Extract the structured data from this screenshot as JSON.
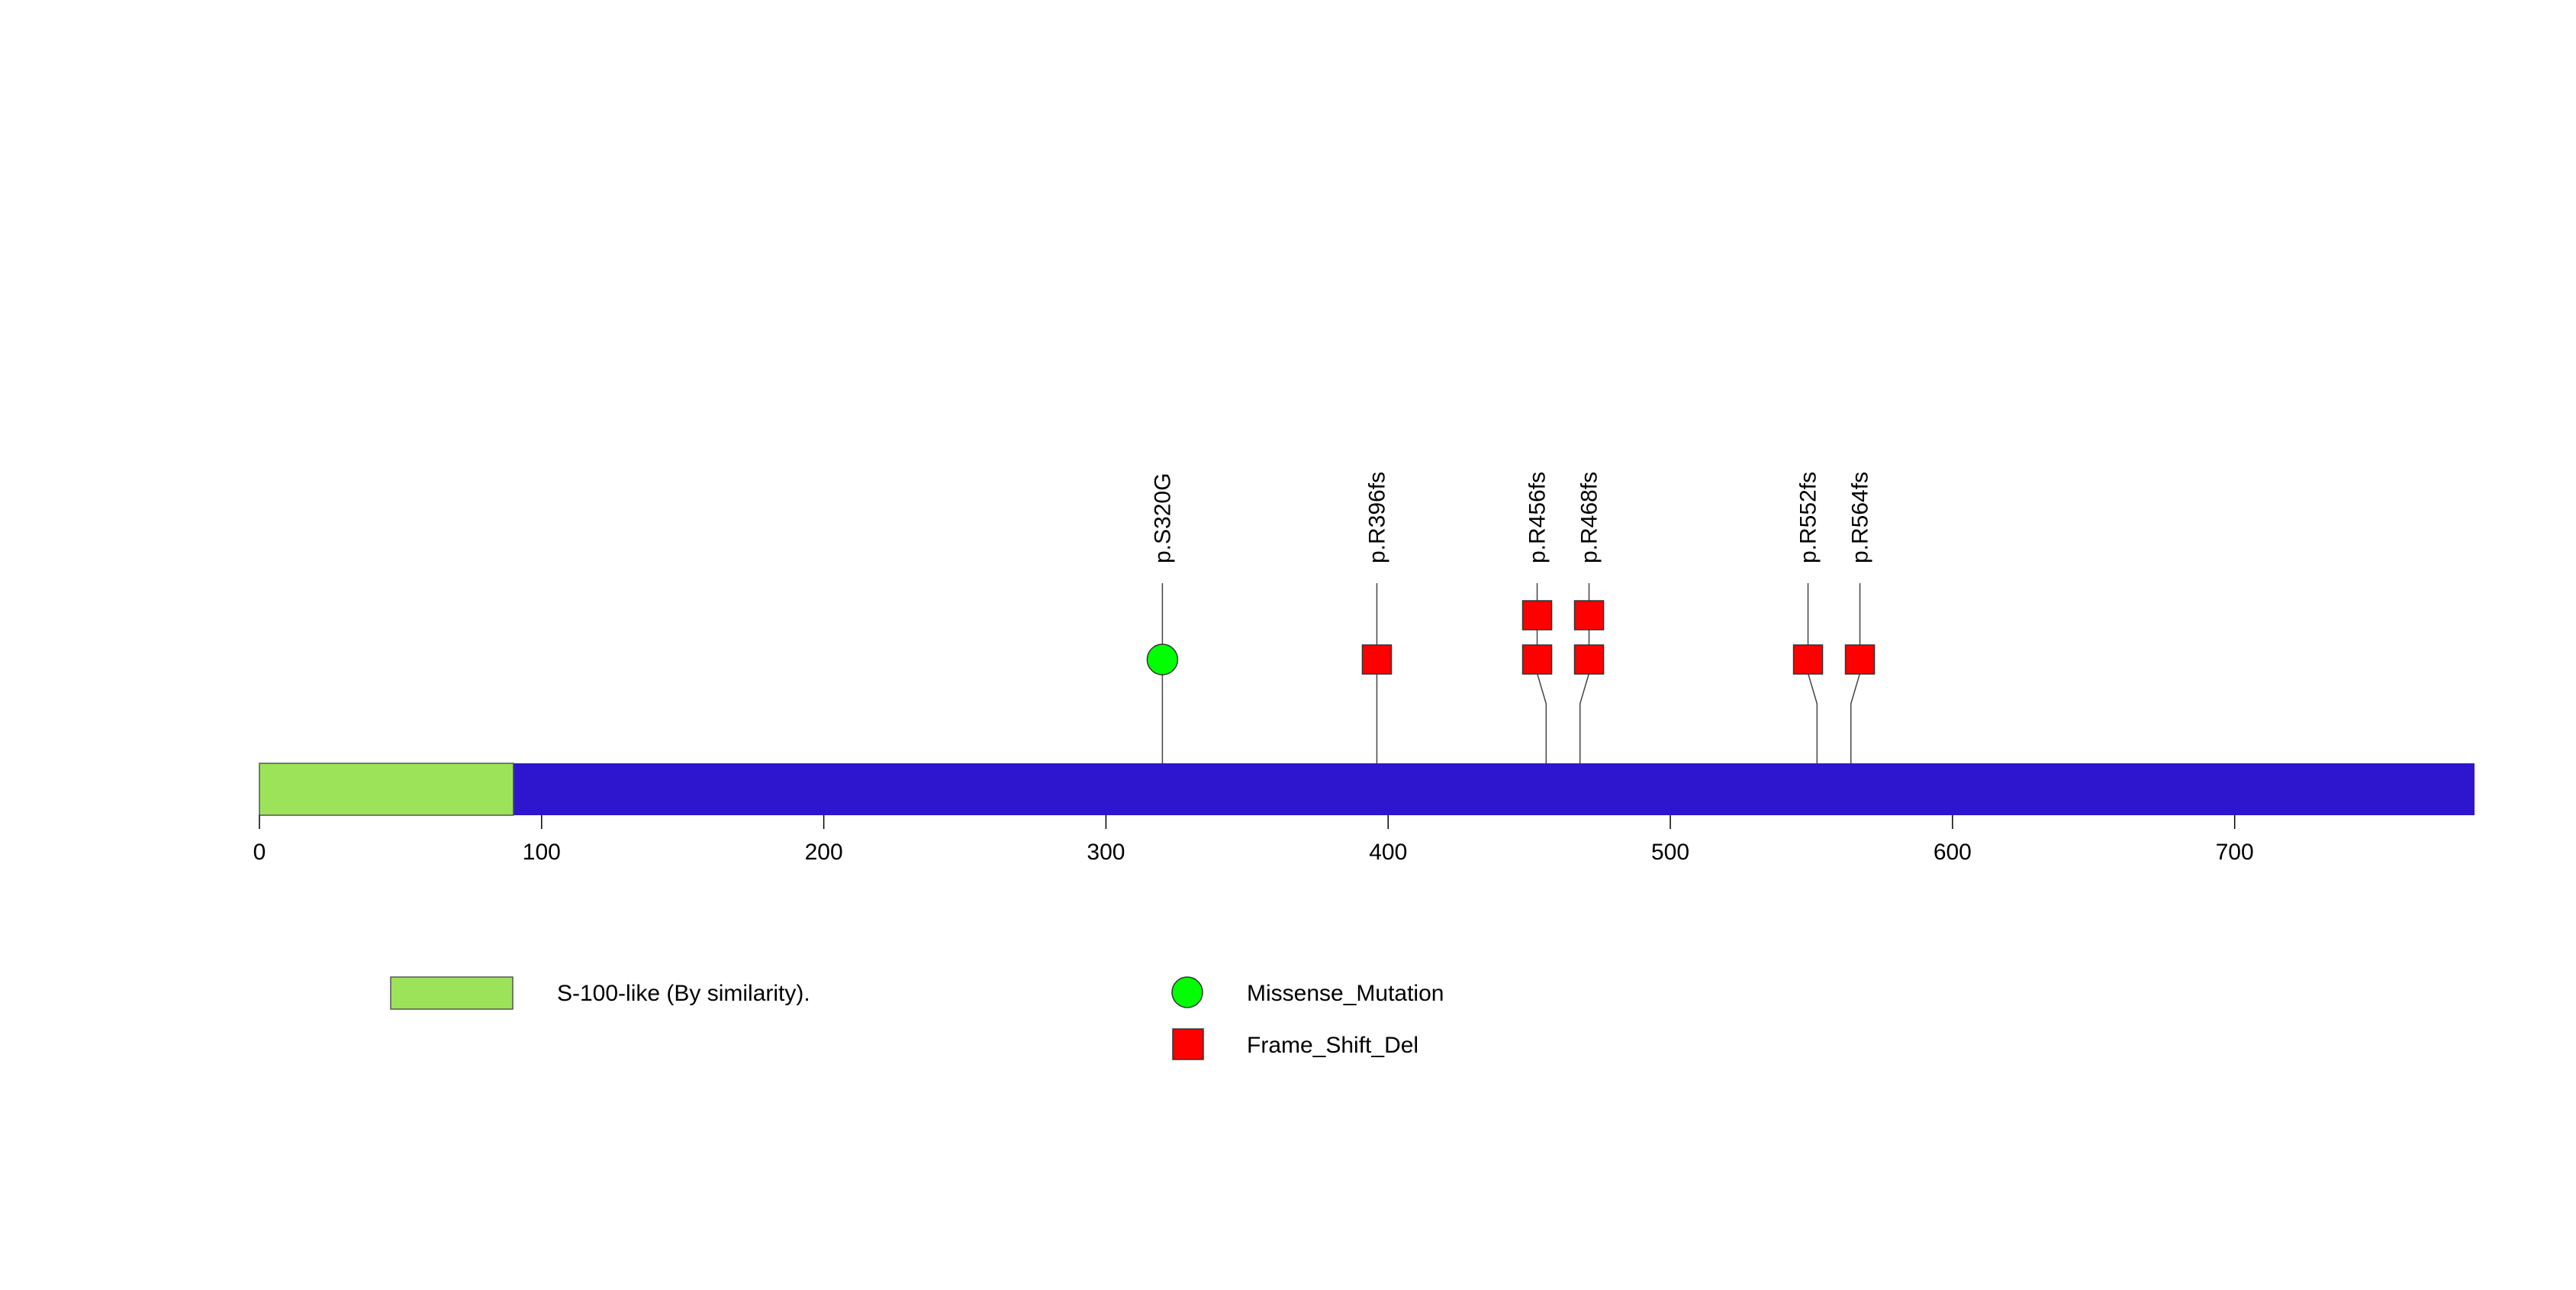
{
  "chart_data": {
    "type": "lollipop",
    "protein_length": 785,
    "xlim": [
      0,
      785
    ],
    "xticks": [
      0,
      100,
      200,
      300,
      400,
      500,
      600,
      700
    ],
    "protein_color": "#2E16CE",
    "domains": [
      {
        "label": "S-100-like (By similarity).",
        "start": 0,
        "end": 90,
        "color": "#9DE35A"
      }
    ],
    "mutation_types": [
      {
        "name": "Missense_Mutation",
        "shape": "circle",
        "color": "#00FF00"
      },
      {
        "name": "Frame_Shift_Del",
        "shape": "square",
        "color": "#FF0000"
      }
    ],
    "mutations": [
      {
        "label": "p.S320G",
        "position": 320,
        "count": 1,
        "type": "Missense_Mutation"
      },
      {
        "label": "p.R396fs",
        "position": 396,
        "count": 1,
        "type": "Frame_Shift_Del"
      },
      {
        "label": "p.R456fs",
        "position": 456,
        "count": 2,
        "type": "Frame_Shift_Del"
      },
      {
        "label": "p.R468fs",
        "position": 468,
        "count": 2,
        "type": "Frame_Shift_Del"
      },
      {
        "label": "p.R552fs",
        "position": 552,
        "count": 1,
        "type": "Frame_Shift_Del"
      },
      {
        "label": "p.R564fs",
        "position": 564,
        "count": 1,
        "type": "Frame_Shift_Del"
      }
    ]
  }
}
